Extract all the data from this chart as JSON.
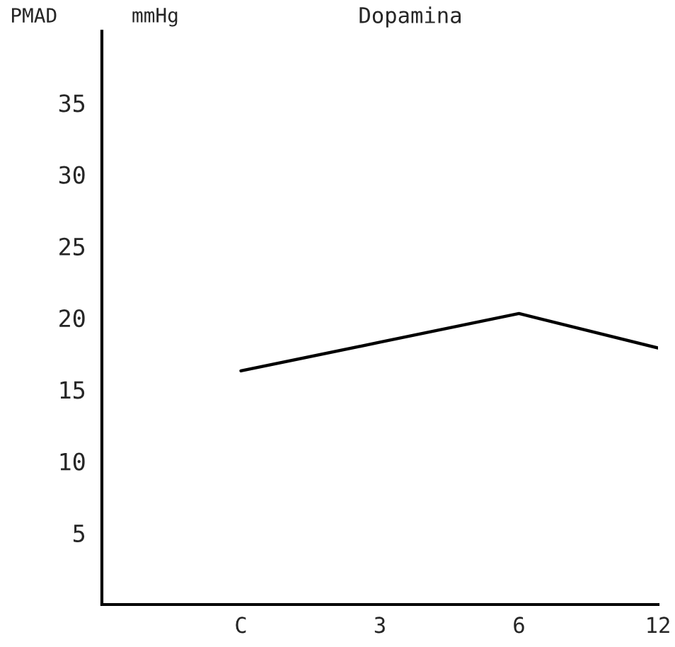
{
  "chart_data": {
    "type": "line",
    "title": "Dopamina",
    "ylabel": "PMAD",
    "annotations": [
      "mmHg"
    ],
    "categories": [
      "C",
      "3",
      "6",
      "12"
    ],
    "series": [
      {
        "color": "#000000",
        "values": [
          16.3,
          18.3,
          20.3,
          17.9
        ]
      }
    ],
    "ylim": [
      0,
      40
    ],
    "yticks": [
      5,
      10,
      15,
      20,
      25,
      30,
      35
    ],
    "grid": false,
    "marker": "none",
    "line_style": "solid"
  }
}
